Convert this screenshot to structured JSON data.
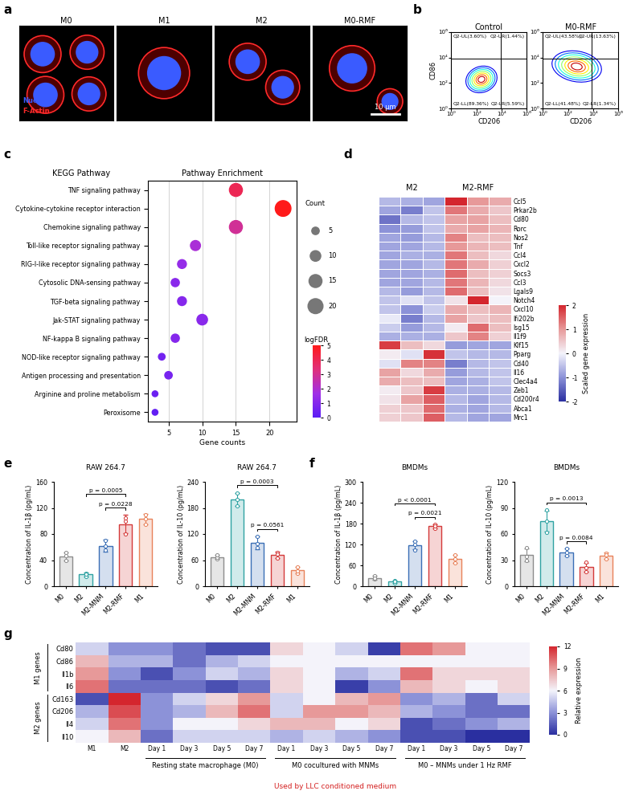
{
  "chart_data": [
    {
      "type": "image",
      "panel": "a",
      "titles": [
        "M0",
        "M1",
        "M2",
        "M0-RMF"
      ],
      "channels": [
        {
          "name": "Nucleus",
          "color": "#3a5bff"
        },
        {
          "name": "F-Actin",
          "color": "#ff2a2a"
        }
      ],
      "scale_bar": "10 μm"
    },
    {
      "type": "contour",
      "panel": "b",
      "xlabel": "CD206",
      "ylabel": "CD86",
      "log": true,
      "xlim": [
        1,
        1000000
      ],
      "ylim": [
        1,
        1000000
      ],
      "xticks": [
        {
          "value": 1,
          "label": "10⁰"
        },
        {
          "value": 100,
          "label": "10²"
        },
        {
          "value": 10000,
          "label": "10⁴"
        },
        {
          "value": 1000000,
          "label": "10⁶"
        }
      ],
      "yticks": [
        {
          "value": 1,
          "label": "10⁰"
        },
        {
          "value": 100,
          "label": "10²"
        },
        {
          "value": 10000,
          "label": "10⁴"
        },
        {
          "value": 1000000,
          "label": "10⁶"
        }
      ],
      "gate": [
        8000,
        8000
      ],
      "plots": [
        {
          "title": "Control",
          "quadrants": {
            "UL": "Q2-UL(3.60%)",
            "UR": "Q2-UR(1.44%)",
            "LL": "Q2-LL(89.36%)",
            "LR": "Q2-LR(5.59%)"
          }
        },
        {
          "title": "M0-RMF",
          "quadrants": {
            "UL": "Q2-UL(43.58%)",
            "UR": "Q2-UR(13.63%)",
            "LL": "Q2-LL(41.48%)",
            "LR": "Q2-LR(1.34%)"
          }
        }
      ]
    },
    {
      "type": "bubble",
      "panel": "c",
      "title": "Pathway Enrichment",
      "ylabel": "KEGG Pathway",
      "xlabel": "Gene counts",
      "categories": [
        "TNF signaling pathway",
        "Cytokine-cytokine receptor interaction",
        "Chemokine signaling pathway",
        "Toll-like receptor signaling pathway",
        "RIG-I-like receptor signaling pathway",
        "Cytosolic DNA-sensing pathway",
        "TGF-beta signaling pathway",
        "Jak-STAT signaling pathway",
        "NF-kappa B signaling pathway",
        "NOD-like receptor signaling pathway",
        "Antigen processing and presentation",
        "Arginine and proline metabolism",
        "Peroxisome"
      ],
      "values": [
        15,
        22,
        15,
        9,
        7,
        6,
        7,
        10,
        6,
        4,
        5,
        3,
        3
      ],
      "color_values": [
        4.0,
        5.0,
        2.9,
        1.9,
        1.4,
        1.1,
        1.0,
        1.1,
        1.0,
        0.6,
        0.7,
        0.4,
        0.2
      ],
      "xlim": [
        2,
        24
      ],
      "xticks": [
        5,
        10,
        15,
        20
      ],
      "grid": true,
      "size_legend": {
        "title": "Count",
        "values": [
          5,
          10,
          15,
          20
        ]
      },
      "colorbar": {
        "label": "logFDR",
        "range": [
          0,
          5
        ],
        "ticks": [
          0,
          1,
          2,
          3,
          4,
          5
        ]
      }
    },
    {
      "type": "heatmap",
      "panel": "d",
      "column_groups": [
        {
          "label": "M2",
          "n": 3
        },
        {
          "label": "M2-RMF",
          "n": 3
        }
      ],
      "rows": [
        "Ccl5",
        "Prkar2b",
        "Cd80",
        "Rorc",
        "Nos2",
        "Tnf",
        "Ccl4",
        "Cxcl2",
        "Socs3",
        "Ccl3",
        "Lgals9",
        "Notch4",
        "Cxcl10",
        "Ifi202b",
        "Isg15",
        "Il1f9",
        "Klf15",
        "Pparg",
        "Cd40",
        "Il16",
        "Clec4a4",
        "Zeb1",
        "Cd200r4",
        "Abca1",
        "Mrc1"
      ],
      "values": [
        [
          -0.6,
          -0.7,
          -0.8,
          2.0,
          1.0,
          0.8
        ],
        [
          -0.8,
          -1.2,
          -0.5,
          1.3,
          0.8,
          0.5
        ],
        [
          -1.3,
          -0.6,
          -0.5,
          0.9,
          0.9,
          0.6
        ],
        [
          -1.0,
          -0.9,
          -0.5,
          0.8,
          0.9,
          0.7
        ],
        [
          -0.8,
          -0.9,
          -0.6,
          1.2,
          0.6,
          0.6
        ],
        [
          -0.8,
          -0.8,
          -0.6,
          1.0,
          0.7,
          0.6
        ],
        [
          -0.8,
          -0.7,
          -0.7,
          1.3,
          0.6,
          0.3
        ],
        [
          -0.8,
          -0.8,
          -0.6,
          1.3,
          0.8,
          0.4
        ],
        [
          -0.8,
          -0.8,
          -0.7,
          1.4,
          0.6,
          0.4
        ],
        [
          -0.8,
          -0.8,
          -0.6,
          1.3,
          0.7,
          0.3
        ],
        [
          -0.6,
          -0.9,
          -0.6,
          1.4,
          0.6,
          0.2
        ],
        [
          -0.5,
          -0.2,
          -0.5,
          0.2,
          2.0,
          0.0
        ],
        [
          -0.5,
          -1.0,
          -0.4,
          0.8,
          0.6,
          0.7
        ],
        [
          -0.1,
          -1.2,
          -0.6,
          0.9,
          0.5,
          0.6
        ],
        [
          -0.4,
          -0.9,
          -0.6,
          0.1,
          1.4,
          0.6
        ],
        [
          -0.7,
          -0.7,
          -0.7,
          0.5,
          1.2,
          0.4
        ],
        [
          1.8,
          0.6,
          0.3,
          -0.9,
          -0.8,
          -0.8
        ],
        [
          0.1,
          -0.2,
          1.9,
          -0.5,
          -0.6,
          -0.6
        ],
        [
          -0.2,
          1.2,
          1.2,
          -1.2,
          -0.6,
          -0.5
        ],
        [
          0.9,
          0.3,
          0.8,
          -0.9,
          -0.6,
          -0.5
        ],
        [
          0.8,
          0.6,
          0.6,
          -0.8,
          -0.7,
          -0.5
        ],
        [
          0.1,
          0.5,
          1.8,
          -0.7,
          -0.7,
          -0.6
        ],
        [
          0.2,
          0.9,
          1.5,
          -0.6,
          -0.8,
          -0.6
        ],
        [
          0.4,
          0.5,
          1.4,
          -0.7,
          -0.8,
          -0.6
        ],
        [
          0.4,
          0.5,
          1.5,
          -0.6,
          -0.8,
          -0.8
        ]
      ],
      "colorbar": {
        "label": "Scaled gene expression",
        "range": [
          -2,
          2
        ],
        "ticks": [
          -2,
          -1,
          0,
          1,
          2
        ]
      }
    },
    {
      "type": "bar",
      "panel": "e",
      "title": "RAW 264.7",
      "ylabel": "Concentration of IL-1β (pg/mL)",
      "categories": [
        "M0",
        "M2",
        "M2-MNM",
        "M2-RMF",
        "M1"
      ],
      "colors": [
        "#8c8c8c",
        "#2fa3a3",
        "#3b6fb6",
        "#d43a3a",
        "#e8825a"
      ],
      "values": [
        46,
        18,
        62,
        95,
        103
      ],
      "errors": [
        6,
        3,
        9,
        14,
        8
      ],
      "points": [
        [
          52,
          40,
          47
        ],
        [
          20,
          15,
          19
        ],
        [
          55,
          70,
          62
        ],
        [
          80,
          100,
          105
        ],
        [
          95,
          103,
          110
        ]
      ],
      "ylim": [
        0,
        160
      ],
      "yticks": [
        0,
        40,
        80,
        120,
        160
      ],
      "comparisons": [
        {
          "from": "M2-MNM",
          "to": "M2-RMF",
          "label": "p = 0.0228"
        },
        {
          "from": "M2",
          "to": "M2-RMF",
          "label": "p = 0.0005"
        }
      ]
    },
    {
      "type": "bar",
      "title": "RAW 264.7",
      "ylabel": "Concentration of IL-10 (pg/mL)",
      "categories": [
        "M0",
        "M2",
        "M2-MNM",
        "M2-RMF",
        "M1"
      ],
      "colors": [
        "#8c8c8c",
        "#2fa3a3",
        "#3b6fb6",
        "#d43a3a",
        "#e8825a"
      ],
      "values": [
        67,
        200,
        100,
        72,
        37
      ],
      "errors": [
        5,
        15,
        15,
        8,
        8
      ],
      "points": [
        [
          63,
          66,
          72
        ],
        [
          185,
          215,
          200
        ],
        [
          88,
          115,
          97
        ],
        [
          65,
          78,
          73
        ],
        [
          30,
          45,
          36
        ]
      ],
      "ylim": [
        0,
        240
      ],
      "yticks": [
        0,
        60,
        120,
        180,
        240
      ],
      "comparisons": [
        {
          "from": "M2-MNM",
          "to": "M2-RMF",
          "label": "p = 0.0561"
        },
        {
          "from": "M2",
          "to": "M2-RMF",
          "label": "p = 0.0003"
        }
      ]
    },
    {
      "type": "bar",
      "panel": "f",
      "title": "BMDMs",
      "ylabel": "Concentration of IL-1β (pg/mL)",
      "categories": [
        "M0",
        "M2",
        "M2-MNM",
        "M2-RMF",
        "M1"
      ],
      "colors": [
        "#8c8c8c",
        "#2fa3a3",
        "#3b6fb6",
        "#d43a3a",
        "#e8825a"
      ],
      "values": [
        24,
        13,
        118,
        172,
        78
      ],
      "errors": [
        5,
        3,
        12,
        6,
        12
      ],
      "points": [
        [
          20,
          30,
          22
        ],
        [
          10,
          16,
          13
        ],
        [
          105,
          130,
          119
        ],
        [
          166,
          178,
          172
        ],
        [
          66,
          90,
          78
        ]
      ],
      "ylim": [
        0,
        300
      ],
      "yticks": [
        0,
        60,
        120,
        180,
        240,
        300
      ],
      "comparisons": [
        {
          "from": "M2-MNM",
          "to": "M2-RMF",
          "label": "p = 0.0021"
        },
        {
          "from": "M2",
          "to": "M2-RMF",
          "label": "p < 0.0001"
        }
      ]
    },
    {
      "type": "bar",
      "title": "BMDMs",
      "ylabel": "Concentration of IL-10 (pg/mL)",
      "categories": [
        "M0",
        "M2",
        "M2-MNM",
        "M2-RMF",
        "M1"
      ],
      "colors": [
        "#8c8c8c",
        "#2fa3a3",
        "#3b6fb6",
        "#d43a3a",
        "#e8825a"
      ],
      "values": [
        36,
        75,
        39,
        22,
        35
      ],
      "errors": [
        7,
        12,
        4,
        5,
        4
      ],
      "points": [
        [
          30,
          44,
          34
        ],
        [
          62,
          88,
          75
        ],
        [
          35,
          43,
          39
        ],
        [
          17,
          28,
          21
        ],
        [
          31,
          38,
          36
        ]
      ],
      "ylim": [
        0,
        120
      ],
      "yticks": [
        0,
        30,
        60,
        90,
        120
      ],
      "comparisons": [
        {
          "from": "M2-MNM",
          "to": "M2-RMF",
          "label": "p = 0.0084"
        },
        {
          "from": "M2",
          "to": "M2-RMF",
          "label": "p = 0.0013"
        }
      ]
    },
    {
      "type": "heatmap",
      "panel": "g",
      "rows": [
        "Cd80",
        "Cd86",
        "Il1b",
        "Il6",
        "Cd163",
        "Cd206",
        "Il4",
        "Il10"
      ],
      "row_groups": [
        {
          "label": "M1 genes",
          "n": 4
        },
        {
          "label": "M2 genes",
          "n": 4
        }
      ],
      "columns": [
        "M1",
        "M2",
        "Day 1",
        "Day 3",
        "Day 5",
        "Day 7",
        "Day 1",
        "Day 3",
        "Day 5",
        "Day 7",
        "Day 1",
        "Day 3",
        "Day 5",
        "Day 7"
      ],
      "column_groups": [
        {
          "label": "Resting state macrophage (M0)",
          "n": 4
        },
        {
          "label": "M0 cocultured with MNMs",
          "n": 4
        },
        {
          "label": "M0 – MNMs under 1 Hz RMF",
          "n": 4
        }
      ],
      "note": "Used by LLC conditioned medium",
      "values": [
        [
          5,
          3,
          3,
          2,
          1,
          1,
          7,
          6,
          5,
          0.5,
          10,
          9,
          6,
          6
        ],
        [
          8,
          4,
          4,
          2,
          4,
          5,
          6,
          6,
          6,
          6,
          6,
          6,
          6,
          6
        ],
        [
          9,
          3,
          1,
          3,
          5,
          4,
          7,
          6,
          4,
          5,
          10,
          7,
          7,
          7
        ],
        [
          10,
          2,
          2,
          2,
          1,
          2,
          7,
          6,
          0.5,
          3,
          8,
          7,
          6,
          7
        ],
        [
          1,
          12,
          3,
          5,
          7,
          9,
          5,
          6,
          8,
          9,
          3,
          4,
          2,
          5
        ],
        [
          4,
          11,
          3,
          4,
          8,
          10,
          5,
          9,
          9,
          8,
          4,
          3,
          2,
          2
        ],
        [
          5,
          10,
          3,
          6,
          6,
          7,
          8,
          8,
          6,
          7,
          1,
          2,
          3,
          4
        ],
        [
          6,
          8,
          2,
          5,
          5,
          5,
          4,
          5,
          4,
          3,
          1,
          1,
          0,
          0
        ]
      ],
      "colorbar": {
        "label": "Relative expression",
        "range": [
          0,
          12
        ],
        "ticks": [
          0,
          3,
          6,
          9,
          12
        ]
      }
    }
  ]
}
